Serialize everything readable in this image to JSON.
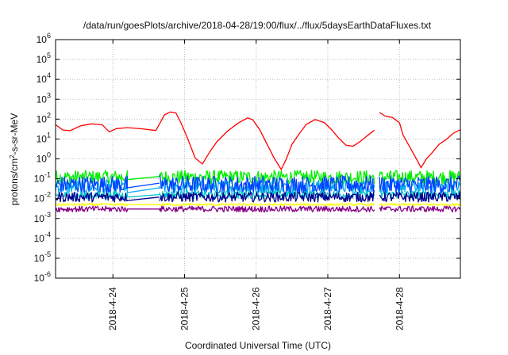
{
  "chart_data": {
    "type": "line",
    "title": "/data/run/goesPlots/archive/2018-04-28/19:00/flux/../flux/5daysEarthDataFluxes.txt",
    "xlabel": "Coordinated Universal Time (UTC)",
    "ylabel": {
      "prefix": "protons/cm",
      "sup": "2",
      "suffix": "-s-sr-MeV"
    },
    "yscale": "log",
    "ylim": [
      1e-06,
      1000000.0
    ],
    "xlim": [
      23.2,
      28.85
    ],
    "grid": true,
    "yticks": [
      {
        "value": 1e-06,
        "base": "10",
        "exp": "-6"
      },
      {
        "value": 1e-05,
        "base": "10",
        "exp": "-5"
      },
      {
        "value": 0.0001,
        "base": "10",
        "exp": "-4"
      },
      {
        "value": 0.001,
        "base": "10",
        "exp": "-3"
      },
      {
        "value": 0.01,
        "base": "10",
        "exp": "-2"
      },
      {
        "value": 0.1,
        "base": "10",
        "exp": "-1"
      },
      {
        "value": 1.0,
        "base": "10",
        "exp": "0"
      },
      {
        "value": 10.0,
        "base": "10",
        "exp": "1"
      },
      {
        "value": 100.0,
        "base": "10",
        "exp": "2"
      },
      {
        "value": 1000.0,
        "base": "10",
        "exp": "3"
      },
      {
        "value": 10000.0,
        "base": "10",
        "exp": "4"
      },
      {
        "value": 100000.0,
        "base": "10",
        "exp": "5"
      },
      {
        "value": 1000000.0,
        "base": "10",
        "exp": "6"
      }
    ],
    "xticks": [
      {
        "value": 24,
        "label": "2018-4-24"
      },
      {
        "value": 25,
        "label": "2018-4-25"
      },
      {
        "value": 26,
        "label": "2018-4-26"
      },
      {
        "value": 27,
        "label": "2018-4-27"
      },
      {
        "value": 28,
        "label": "2018-4-28"
      }
    ],
    "series": [
      {
        "color": "#ff0000",
        "x": [
          23.2,
          23.3,
          23.4,
          23.55,
          23.7,
          23.85,
          23.95,
          24.05,
          24.2,
          24.4,
          24.6,
          24.65,
          24.72,
          24.8,
          24.88,
          24.95,
          25.05,
          25.15,
          25.25,
          25.35,
          25.45,
          25.6,
          25.75,
          25.88,
          25.95,
          26.05,
          26.15,
          26.25,
          26.35,
          26.42,
          26.5,
          26.6,
          26.7,
          26.82,
          26.95,
          27.05,
          27.15,
          27.25,
          27.35,
          27.45,
          27.55,
          27.65
        ],
        "y": [
          50,
          30,
          25,
          40,
          55,
          50,
          25,
          30,
          35,
          30,
          25,
          60,
          150,
          250,
          200,
          70,
          10,
          1,
          0.5,
          2,
          8,
          25,
          60,
          120,
          100,
          30,
          5,
          1,
          0.3,
          1,
          5,
          20,
          60,
          100,
          70,
          30,
          10,
          5,
          4,
          8,
          15,
          25
        ]
      },
      {
        "color": "#ff0000",
        "x": [
          27.72,
          27.8,
          27.9,
          28.0,
          28.05,
          28.15,
          28.25,
          28.3,
          28.38,
          28.45,
          28.55,
          28.65,
          28.75,
          28.85
        ],
        "y": [
          200,
          150,
          120,
          60,
          15,
          4,
          0.8,
          0.4,
          1,
          2,
          5,
          10,
          20,
          30
        ]
      },
      {
        "color": "#00ee00",
        "x": [
          23.2,
          24.2,
          24.2,
          24.65,
          24.65,
          27.65,
          27.72,
          28.85
        ],
        "y": [
          0.12,
          0.12,
          0.09,
          0.13,
          0.12,
          0.12,
          0.12,
          0.12
        ],
        "noise": 0.35
      },
      {
        "color": "#00aaee",
        "x": [
          23.2,
          24.2,
          24.2,
          24.65,
          24.65,
          27.65,
          27.72,
          28.85
        ],
        "y": [
          0.04,
          0.04,
          0.02,
          0.035,
          0.04,
          0.04,
          0.04,
          0.04
        ],
        "noise": 0.35
      },
      {
        "color": "#0044ff",
        "x": [
          23.2,
          24.2,
          24.2,
          24.65,
          24.65,
          27.65,
          27.72,
          28.85
        ],
        "y": [
          0.05,
          0.05,
          0.035,
          0.06,
          0.05,
          0.05,
          0.05,
          0.05
        ],
        "noise": 0.45
      },
      {
        "color": "#00c8c8",
        "x": [
          23.2,
          24.2,
          24.2,
          24.65,
          24.65,
          27.65,
          27.72,
          28.85
        ],
        "y": [
          0.015,
          0.015,
          0.012,
          0.016,
          0.016,
          0.016,
          0.016,
          0.016
        ],
        "noise": 0.2
      },
      {
        "color": "#000090",
        "x": [
          23.2,
          24.2,
          24.2,
          24.65,
          24.65,
          27.65,
          27.72,
          28.85
        ],
        "y": [
          0.012,
          0.012,
          0.008,
          0.012,
          0.012,
          0.012,
          0.012,
          0.012
        ],
        "noise": 0.25
      },
      {
        "color": "#ffff00",
        "x": [
          23.2,
          24.2,
          24.2,
          24.65,
          24.65,
          27.65,
          27.72,
          28.85
        ],
        "y": [
          0.005,
          0.005,
          0.005,
          0.005,
          0.005,
          0.005,
          0.005,
          0.005
        ],
        "noise": 0.06
      },
      {
        "color": "#880088",
        "x": [
          23.2,
          24.2,
          24.2,
          24.65,
          24.65,
          27.65,
          27.72,
          28.85
        ],
        "y": [
          0.003,
          0.003,
          0.003,
          0.003,
          0.003,
          0.003,
          0.003,
          0.003
        ],
        "noise": 0.15
      }
    ]
  }
}
